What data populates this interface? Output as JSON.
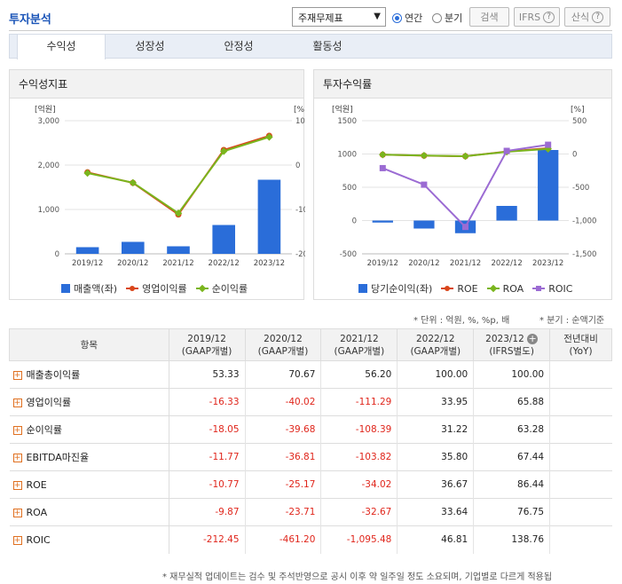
{
  "header": {
    "title": "투자분석",
    "select_value": "주재무제표",
    "radio_annual": "연간",
    "radio_quarter": "분기",
    "search_label": "검색",
    "ifrs_label": "IFRS",
    "calc_label": "산식"
  },
  "tabs": [
    "수익성",
    "성장성",
    "안정성",
    "활동성"
  ],
  "left_panel": {
    "title": "수익성지표",
    "unit_left": "[억원]",
    "unit_right": "[%]"
  },
  "right_panel": {
    "title": "투자수익률",
    "unit_left": "[억원]",
    "unit_right": "[%]"
  },
  "notes": {
    "unit": "* 단위 : 억원, %, %p, 배",
    "quarter": "* 분기 : 순액기준"
  },
  "table": {
    "col_item": "항목",
    "headers": [
      [
        "2019/12",
        "(GAAP개별)"
      ],
      [
        "2020/12",
        "(GAAP개별)"
      ],
      [
        "2021/12",
        "(GAAP개별)"
      ],
      [
        "2022/12",
        "(GAAP개별)"
      ],
      [
        "2023/12",
        "(IFRS별도)"
      ],
      [
        "전년대비",
        "(YoY)"
      ]
    ],
    "rows": [
      {
        "label": "매출총이익률",
        "values": [
          "53.33",
          "70.67",
          "56.20",
          "100.00",
          "100.00",
          ""
        ]
      },
      {
        "label": "영업이익률",
        "values": [
          "-16.33",
          "-40.02",
          "-111.29",
          "33.95",
          "65.88",
          ""
        ]
      },
      {
        "label": "순이익률",
        "values": [
          "-18.05",
          "-39.68",
          "-108.39",
          "31.22",
          "63.28",
          ""
        ]
      },
      {
        "label": "EBITDA마진율",
        "values": [
          "-11.77",
          "-36.81",
          "-103.82",
          "35.80",
          "67.44",
          ""
        ]
      },
      {
        "label": "ROE",
        "values": [
          "-10.77",
          "-25.17",
          "-34.02",
          "36.67",
          "86.44",
          ""
        ]
      },
      {
        "label": "ROA",
        "values": [
          "-9.87",
          "-23.71",
          "-32.67",
          "33.64",
          "76.75",
          ""
        ]
      },
      {
        "label": "ROIC",
        "values": [
          "-212.45",
          "-461.20",
          "-1,095.48",
          "46.81",
          "138.76",
          ""
        ]
      }
    ]
  },
  "footnote": "* 재무실적 업데이트는 검수 및 주석반영으로 공시 이후 약 일주일 정도 소요되며, 기업별로 다르게 적용됩",
  "colors": {
    "bar": "#2a6dd9",
    "op": "#d9461a",
    "net": "#7ab51d",
    "roic": "#9b6bd3"
  },
  "chart_data": [
    {
      "type": "bar",
      "title": "수익성지표",
      "categories": [
        "2019/12",
        "2020/12",
        "2021/12",
        "2022/12",
        "2023/12"
      ],
      "y_left_ticks": [
        "3,000",
        "2,000",
        "1,000",
        "0"
      ],
      "y_right_ticks": [
        "100",
        "0",
        "-100",
        "-200"
      ],
      "ylim_left": [
        0,
        3000
      ],
      "ylim_right": [
        -200,
        100
      ],
      "series": [
        {
          "name": "매출액(좌)",
          "kind": "bar",
          "axis": "left",
          "values": [
            150,
            270,
            170,
            650,
            1670
          ]
        },
        {
          "name": "영업이익률",
          "kind": "line",
          "axis": "right",
          "values": [
            -16.33,
            -40.02,
            -111.29,
            33.95,
            65.88
          ]
        },
        {
          "name": "순이익률",
          "kind": "line",
          "axis": "right",
          "values": [
            -18.05,
            -39.68,
            -108.39,
            31.22,
            63.28
          ]
        }
      ],
      "legend": [
        "매출액(좌)",
        "영업이익률",
        "순이익률"
      ]
    },
    {
      "type": "bar",
      "title": "투자수익률",
      "categories": [
        "2019/12",
        "2020/12",
        "2021/12",
        "2022/12",
        "2023/12"
      ],
      "y_left_ticks": [
        "1500",
        "1000",
        "500",
        "0",
        "-500"
      ],
      "y_right_ticks": [
        "500",
        "0",
        "-500",
        "-1,000",
        "-1,500"
      ],
      "ylim_left": [
        -500,
        1500
      ],
      "ylim_right": [
        -1500,
        500
      ],
      "series": [
        {
          "name": "당기순이익(좌)",
          "kind": "bar",
          "axis": "left",
          "values": [
            -30,
            -120,
            -190,
            220,
            1060
          ]
        },
        {
          "name": "ROE",
          "kind": "line",
          "axis": "right",
          "values": [
            -10.77,
            -25.17,
            -34.02,
            36.67,
            86.44
          ]
        },
        {
          "name": "ROA",
          "kind": "line",
          "axis": "right",
          "values": [
            -9.87,
            -23.71,
            -32.67,
            33.64,
            76.75
          ]
        },
        {
          "name": "ROIC",
          "kind": "line",
          "axis": "right",
          "values": [
            -212.45,
            -461.2,
            -1095.48,
            46.81,
            138.76
          ]
        }
      ],
      "legend": [
        "당기순이익(좌)",
        "ROE",
        "ROA",
        "ROIC"
      ]
    }
  ]
}
